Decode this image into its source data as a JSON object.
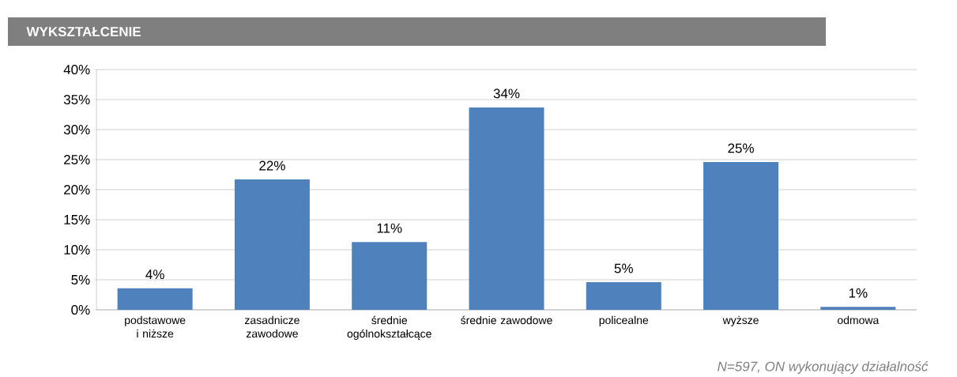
{
  "chart_data": {
    "type": "bar",
    "title": "WYKSZTAŁCENIE",
    "categories": [
      "podstawowe i niższe",
      "zasadnicze zawodowe",
      "średnie ogólnokształcące",
      "średnie zawodowe",
      "policealne",
      "wyższe",
      "odmowa"
    ],
    "values": [
      3.6,
      21.7,
      11.3,
      33.7,
      4.6,
      24.6,
      0.5
    ],
    "value_labels": [
      "4%",
      "22%",
      "11%",
      "34%",
      "5%",
      "25%",
      "1%"
    ],
    "color": "#4f81bd",
    "ylim": [
      0,
      40
    ],
    "yticks": [
      {
        "value": 0,
        "label": "0%"
      },
      {
        "value": 5,
        "label": "5%"
      },
      {
        "value": 10,
        "label": "10%"
      },
      {
        "value": 15,
        "label": "15%"
      },
      {
        "value": 20,
        "label": "20%"
      },
      {
        "value": 25,
        "label": "25%"
      },
      {
        "value": 30,
        "label": "30%"
      },
      {
        "value": 35,
        "label": "35%"
      },
      {
        "value": 40,
        "label": "40%"
      }
    ],
    "grid": "y",
    "annotations": [
      "N=597, ON wykonujący działalność"
    ]
  }
}
